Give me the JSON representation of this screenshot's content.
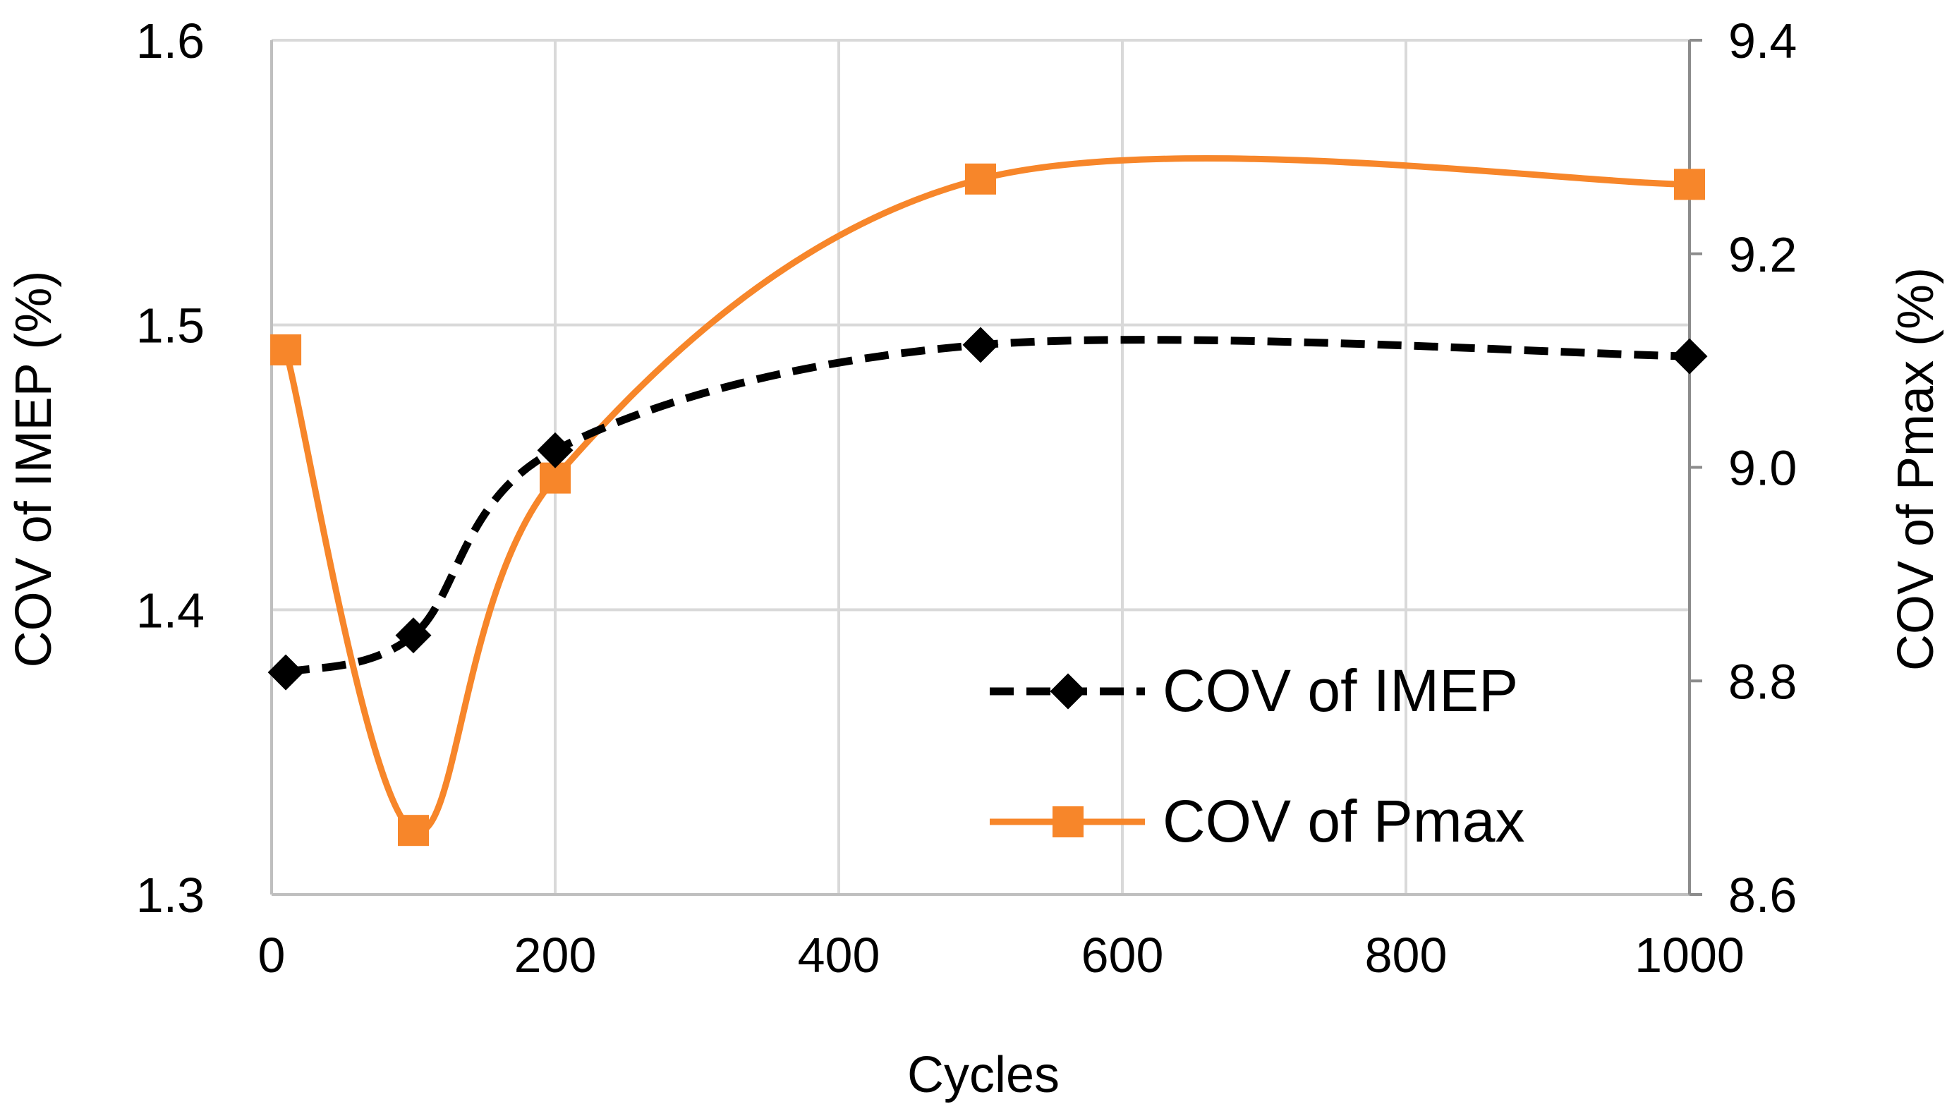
{
  "chart_data": {
    "type": "line",
    "title": "",
    "xlabel": "Cycles",
    "ylabel_left": "COV of IMEP (%)",
    "ylabel_right": "COV of Pmax (%)",
    "xlim": [
      0,
      1000
    ],
    "ylim_left": [
      1.3,
      1.6
    ],
    "ylim_right": [
      8.6,
      9.4
    ],
    "x_ticks": [
      "0",
      "200",
      "400",
      "600",
      "800",
      "1000"
    ],
    "y_left_ticks": [
      "1.3",
      "1.4",
      "1.5",
      "1.6"
    ],
    "y_right_ticks": [
      "8.6",
      "8.8",
      "9.0",
      "9.2",
      "9.4"
    ],
    "grid": true,
    "legend_position": "lower-right",
    "x": [
      10,
      100,
      200,
      500,
      1000
    ],
    "series": [
      {
        "name": "COV of IMEP",
        "axis": "left",
        "style": "dashed",
        "marker": "diamond",
        "color": "#000000",
        "values": [
          1.378,
          1.391,
          1.456,
          1.493,
          1.489
        ]
      },
      {
        "name": "COV of Pmax",
        "axis": "right",
        "style": "solid",
        "marker": "square",
        "color": "#F7862A",
        "values": [
          9.11,
          8.66,
          8.99,
          9.27,
          9.265
        ]
      }
    ]
  }
}
